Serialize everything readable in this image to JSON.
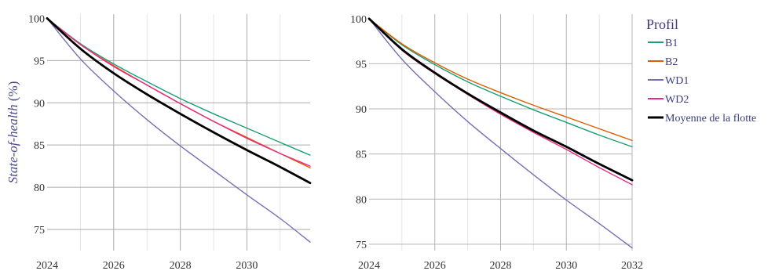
{
  "chart_data": [
    {
      "type": "line",
      "ylabel": "State-of-health",
      "ylabel_unit": "(%)",
      "x_ticks": [
        "2024",
        "2026",
        "2028",
        "2030"
      ],
      "y_ticks": [
        "75",
        "80",
        "85",
        "90",
        "95",
        "100"
      ],
      "xlim": [
        2024,
        2031.9
      ],
      "ylim": [
        72.5,
        100.5
      ],
      "grid": true,
      "series": [
        {
          "name": "B1",
          "color": "#1b9e77",
          "x": [
            2024,
            2025,
            2026,
            2027,
            2028,
            2029,
            2030,
            2031,
            2031.9
          ],
          "y": [
            100,
            97.0,
            94.6,
            92.5,
            90.5,
            88.7,
            87.0,
            85.3,
            83.8
          ]
        },
        {
          "name": "B2",
          "color": "#d95f02",
          "x": [
            2024,
            2025,
            2026,
            2027,
            2028,
            2029,
            2030,
            2031,
            2031.9
          ],
          "y": [
            100,
            96.9,
            94.4,
            92.1,
            89.9,
            87.8,
            85.9,
            84.0,
            82.3
          ]
        },
        {
          "name": "WD1",
          "color": "#7570b3",
          "x": [
            2024,
            2025,
            2026,
            2027,
            2028,
            2029,
            2030,
            2031,
            2031.9
          ],
          "y": [
            100,
            95.2,
            91.4,
            88.0,
            84.9,
            82.0,
            79.1,
            76.3,
            73.5
          ]
        },
        {
          "name": "WD2",
          "color": "#e7298a",
          "x": [
            2024,
            2025,
            2026,
            2027,
            2028,
            2029,
            2030,
            2031,
            2031.9
          ],
          "y": [
            100,
            96.9,
            94.3,
            92.1,
            89.9,
            87.8,
            85.8,
            84.0,
            82.5
          ]
        },
        {
          "name": "Moyenne de la flotte",
          "color": "#000000",
          "x": [
            2024,
            2025,
            2026,
            2027,
            2028,
            2029,
            2030,
            2031,
            2031.9
          ],
          "y": [
            100,
            96.4,
            93.5,
            91.0,
            88.7,
            86.5,
            84.4,
            82.4,
            80.5
          ]
        }
      ]
    },
    {
      "type": "line",
      "ylabel": "",
      "x_ticks": [
        "2024",
        "2026",
        "2028",
        "2030",
        "2032"
      ],
      "y_ticks": [
        "75",
        "80",
        "85",
        "90",
        "95",
        "100"
      ],
      "xlim": [
        2024,
        2032
      ],
      "ylim": [
        74.3,
        100.5
      ],
      "grid": true,
      "series": [
        {
          "name": "B1",
          "color": "#1b9e77",
          "x": [
            2024,
            2025,
            2026,
            2027,
            2028,
            2029,
            2030,
            2031,
            2032
          ],
          "y": [
            100,
            97.1,
            94.9,
            93.0,
            91.4,
            89.9,
            88.5,
            87.1,
            85.8
          ]
        },
        {
          "name": "B2",
          "color": "#d95f02",
          "x": [
            2024,
            2025,
            2026,
            2027,
            2028,
            2029,
            2030,
            2031,
            2032
          ],
          "y": [
            100,
            97.2,
            95.1,
            93.3,
            91.8,
            90.4,
            89.1,
            87.8,
            86.5
          ]
        },
        {
          "name": "WD1",
          "color": "#7570b3",
          "x": [
            2024,
            2025,
            2026,
            2027,
            2028,
            2029,
            2030,
            2031,
            2032
          ],
          "y": [
            100,
            95.5,
            91.9,
            88.6,
            85.6,
            82.7,
            79.9,
            77.3,
            74.6
          ]
        },
        {
          "name": "WD2",
          "color": "#e7298a",
          "x": [
            2024,
            2025,
            2026,
            2027,
            2028,
            2029,
            2030,
            2031,
            2032
          ],
          "y": [
            100,
            96.5,
            93.9,
            91.6,
            89.4,
            87.4,
            85.5,
            83.5,
            81.6
          ]
        },
        {
          "name": "Moyenne de la flotte",
          "color": "#000000",
          "x": [
            2024,
            2025,
            2026,
            2027,
            2028,
            2029,
            2030,
            2031,
            2032
          ],
          "y": [
            100,
            96.6,
            94.0,
            91.7,
            89.6,
            87.6,
            85.8,
            83.9,
            82.1
          ]
        }
      ]
    }
  ],
  "legend": {
    "title": "Profil",
    "placement": "right",
    "items": [
      {
        "name": "B1",
        "color": "#1b9e77"
      },
      {
        "name": "B2",
        "color": "#d95f02"
      },
      {
        "name": "WD1",
        "color": "#7570b3"
      },
      {
        "name": "WD2",
        "color": "#e7298a"
      },
      {
        "name": "Moyenne de la flotte",
        "color": "#000000"
      }
    ]
  }
}
